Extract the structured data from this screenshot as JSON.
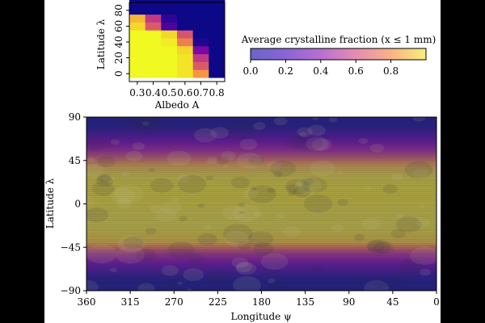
{
  "chart_data": [
    {
      "type": "heatmap",
      "id": "inset-heatmap",
      "xlabel": "Albedo A",
      "ylabel": "Latitude λ",
      "x_ticks": [
        "0.3",
        "0.4",
        "0.5",
        "0.6",
        "0.7",
        "0.8"
      ],
      "y_ticks": [
        "0",
        "20",
        "40",
        "60",
        "80"
      ],
      "x_values": [
        0.3,
        0.4,
        0.5,
        0.6,
        0.7,
        0.8
      ],
      "y_values": [
        0,
        10,
        20,
        30,
        40,
        50,
        60,
        70,
        80,
        90
      ],
      "cells": [
        [
          1.0,
          1.0,
          1.0,
          0.97,
          0.85,
          0.0
        ],
        [
          1.0,
          1.0,
          1.0,
          0.97,
          0.72,
          0.0
        ],
        [
          1.0,
          1.0,
          1.0,
          0.97,
          0.62,
          0.0
        ],
        [
          1.0,
          1.0,
          1.0,
          0.95,
          0.35,
          0.0
        ],
        [
          1.0,
          1.0,
          0.98,
          0.8,
          0.05,
          0.0
        ],
        [
          1.0,
          1.0,
          0.95,
          0.7,
          0.0,
          0.0
        ],
        [
          0.95,
          0.72,
          0.18,
          0.0,
          0.0,
          0.0
        ],
        [
          0.9,
          0.62,
          0.08,
          0.0,
          0.0,
          0.0
        ],
        [
          0.0,
          0.0,
          0.0,
          0.0,
          0.0,
          0.0
        ],
        [
          0.0,
          0.0,
          0.0,
          0.0,
          0.0,
          0.0
        ]
      ],
      "xlim": [
        0.25,
        0.85
      ],
      "ylim": [
        -10,
        90
      ]
    },
    {
      "type": "heatmap",
      "id": "map-heatmap",
      "xlabel": "Longitude ψ",
      "ylabel": "Latitude λ",
      "x_ticks": [
        "360",
        "315",
        "270",
        "225",
        "180",
        "135",
        "90",
        "45",
        "0"
      ],
      "x_tick_values": [
        360,
        315,
        270,
        225,
        180,
        135,
        90,
        45,
        0
      ],
      "y_ticks": [
        "90",
        "45",
        "0",
        "−45",
        "−90"
      ],
      "y_tick_values": [
        90,
        45,
        0,
        -45,
        -90
      ],
      "xlim": [
        360,
        0
      ],
      "ylim": [
        -90,
        90
      ],
      "latitude_profile": {
        "latitude": [
          -90,
          -80,
          -70,
          -60,
          -50,
          -45,
          -40,
          -30,
          -20,
          -10,
          0,
          10,
          20,
          30,
          40,
          45,
          50,
          60,
          70,
          80,
          90
        ],
        "fraction": [
          0.0,
          0.0,
          0.12,
          0.35,
          0.62,
          0.78,
          0.92,
          0.96,
          0.97,
          0.97,
          0.97,
          0.97,
          0.97,
          0.96,
          0.9,
          0.8,
          0.68,
          0.42,
          0.18,
          0.02,
          0.0
        ]
      }
    }
  ],
  "colorbar": {
    "label": "Average crystalline fraction (x ≤ 1 mm)",
    "ticks": [
      "0.0",
      "0.2",
      "0.4",
      "0.6",
      "0.8"
    ],
    "tick_values": [
      0.0,
      0.2,
      0.4,
      0.6,
      0.8
    ],
    "range": [
      0.0,
      1.0
    ]
  },
  "colors": {
    "colormap": "plasma",
    "background": "#000000",
    "panel": "#ffffff"
  }
}
